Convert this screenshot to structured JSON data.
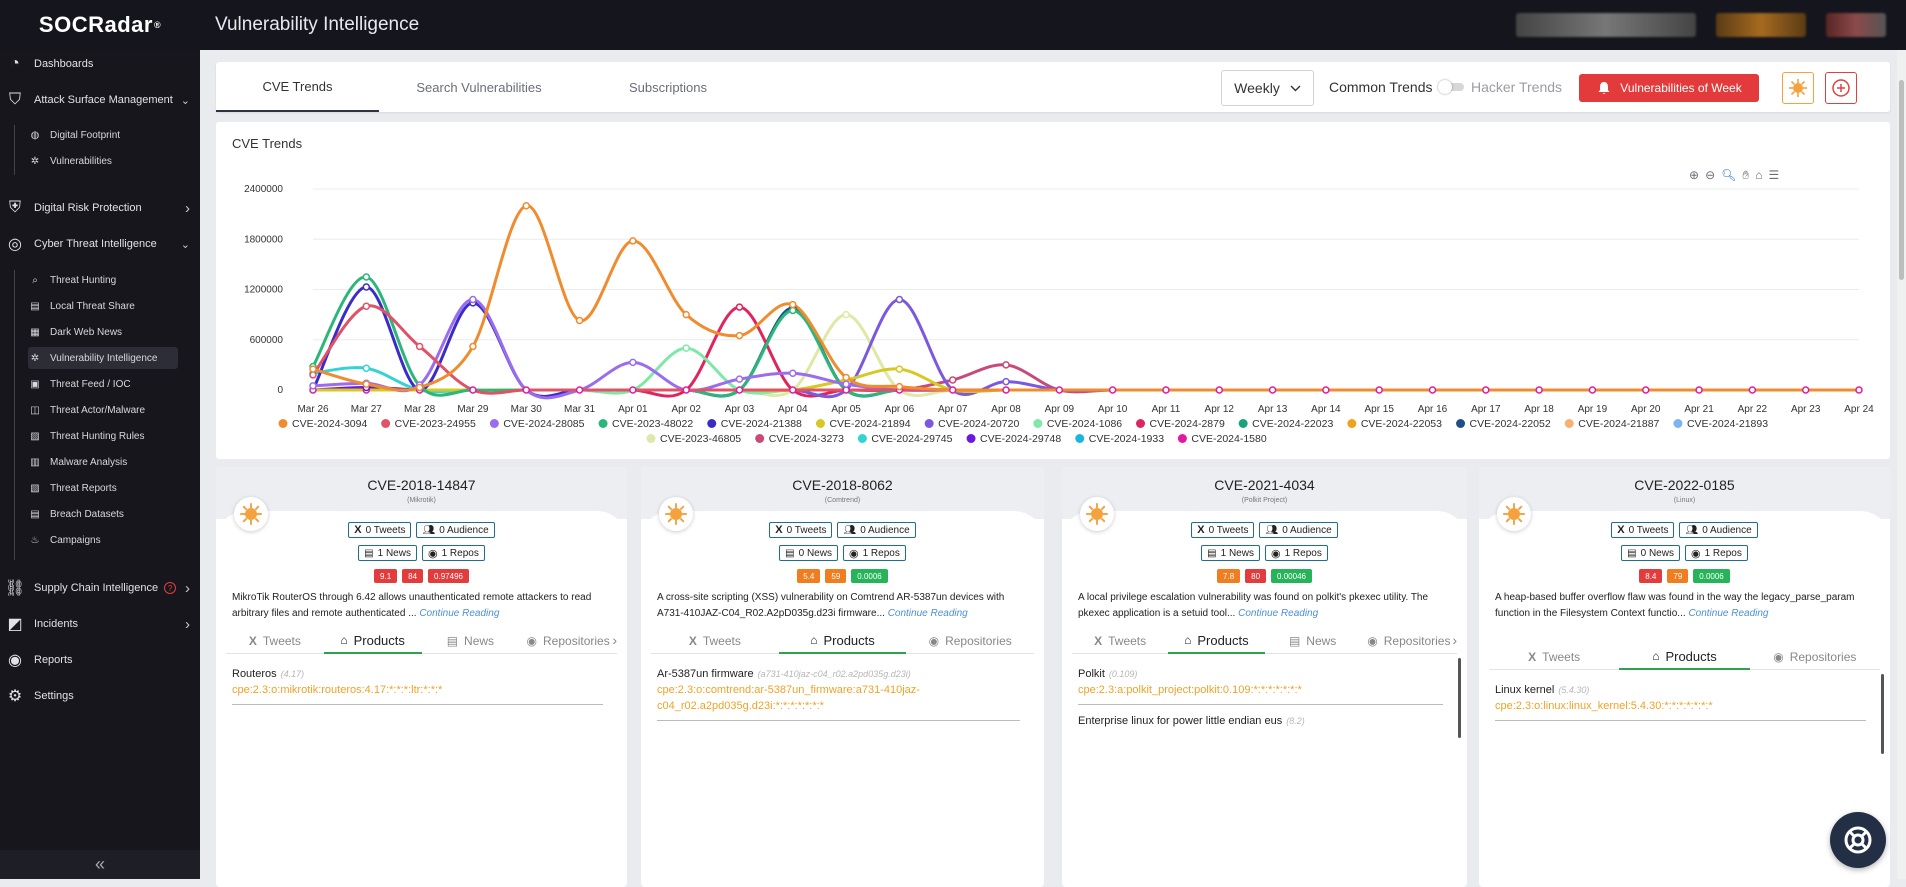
{
  "topbar": {
    "logo": "SOCRadar",
    "logo_mark": "®",
    "title": "Vulnerability Intelligence"
  },
  "sidebar": {
    "items": [
      {
        "label": "Dashboards",
        "icon": "dashboard-icon"
      },
      {
        "label": "Attack Surface Management",
        "icon": "asm-icon",
        "expanded": true
      },
      {
        "label": "Digital Footprint",
        "icon": "globe-icon",
        "sub": true
      },
      {
        "label": "Vulnerabilities",
        "icon": "bug-icon",
        "sub": true
      },
      {
        "label": "Digital Risk Protection",
        "icon": "shield-icon"
      },
      {
        "label": "Cyber Threat Intelligence",
        "icon": "target-icon",
        "expanded": true
      },
      {
        "label": "Threat Hunting",
        "icon": "search-icon",
        "sub": true
      },
      {
        "label": "Local Threat Share",
        "icon": "share-icon",
        "sub": true
      },
      {
        "label": "Dark Web News",
        "icon": "news-icon",
        "sub": true
      },
      {
        "label": "Vulnerability Intelligence",
        "icon": "bug-icon",
        "sub": true,
        "active": true
      },
      {
        "label": "Threat Feed / IOC",
        "icon": "feed-icon",
        "sub": true
      },
      {
        "label": "Threat Actor/Malware",
        "icon": "actor-icon",
        "sub": true
      },
      {
        "label": "Threat Hunting Rules",
        "icon": "rules-icon",
        "sub": true
      },
      {
        "label": "Malware Analysis",
        "icon": "malware-icon",
        "sub": true
      },
      {
        "label": "Threat Reports",
        "icon": "report-icon",
        "sub": true
      },
      {
        "label": "Breach Datasets",
        "icon": "database-icon",
        "sub": true
      },
      {
        "label": "Campaigns",
        "icon": "flame-icon",
        "sub": true
      },
      {
        "label": "Supply Chain Intelligence",
        "icon": "chain-icon",
        "badge": "?"
      },
      {
        "label": "Incidents",
        "icon": "incident-icon"
      },
      {
        "label": "Reports",
        "icon": "reports-icon"
      },
      {
        "label": "Settings",
        "icon": "gear-icon"
      }
    ],
    "collapse": "«"
  },
  "tabs": [
    {
      "label": "CVE Trends",
      "active": true
    },
    {
      "label": "Search Vulnerabilities"
    },
    {
      "label": "Subscriptions"
    }
  ],
  "controls": {
    "period": "Weekly",
    "common_trends": "Common Trends",
    "hacker_trends": "Hacker Trends",
    "vow_button": "Vulnerabilities of Week",
    "accent": "#e33b3b"
  },
  "chart_data": {
    "type": "line",
    "title": "CVE Trends",
    "ylim": [
      0,
      2400000
    ],
    "yticks": [
      0,
      600000,
      1200000,
      1800000,
      2400000
    ],
    "grid": true,
    "legend_position": "bottom",
    "categories": [
      "Mar 26",
      "Mar 27",
      "Mar 28",
      "Mar 29",
      "Mar 30",
      "Mar 31",
      "Apr 01",
      "Apr 02",
      "Apr 03",
      "Apr 04",
      "Apr 05",
      "Apr 06",
      "Apr 07",
      "Apr 08",
      "Apr 09",
      "Apr 10",
      "Apr 11",
      "Apr 12",
      "Apr 13",
      "Apr 14",
      "Apr 15",
      "Apr 16",
      "Apr 17",
      "Apr 18",
      "Apr 19",
      "Apr 20",
      "Apr 21",
      "Apr 22",
      "Apr 23",
      "Apr 24"
    ],
    "series": [
      {
        "name": "CVE-2024-3094",
        "color": "#f08c2e",
        "values": [
          250000,
          70000,
          30000,
          520000,
          2200000,
          830000,
          1780000,
          900000,
          650000,
          1020000,
          150000,
          40000,
          0,
          0,
          0,
          0,
          0,
          0,
          0,
          0,
          0,
          0,
          0,
          0,
          0,
          0,
          0,
          0,
          0,
          0
        ]
      },
      {
        "name": "CVE-2023-24955",
        "color": "#e05267",
        "values": [
          180000,
          1000000,
          520000,
          0,
          0,
          0,
          0,
          0,
          0,
          0,
          0,
          0,
          0,
          0,
          0,
          0,
          0,
          0,
          0,
          0,
          0,
          0,
          0,
          0,
          0,
          0,
          0,
          0,
          0,
          0
        ]
      },
      {
        "name": "CVE-2024-28085",
        "color": "#9b6cf0",
        "values": [
          50000,
          80000,
          60000,
          1080000,
          0,
          0,
          330000,
          0,
          130000,
          200000,
          70000,
          0,
          0,
          0,
          0,
          0,
          0,
          0,
          0,
          0,
          0,
          0,
          0,
          0,
          0,
          0,
          0,
          0,
          0,
          0
        ]
      },
      {
        "name": "CVE-2023-48022",
        "color": "#2bb77a",
        "values": [
          280000,
          1350000,
          50000,
          0,
          0,
          0,
          0,
          0,
          0,
          950000,
          0,
          0,
          0,
          0,
          0,
          0,
          0,
          0,
          0,
          0,
          0,
          0,
          0,
          0,
          0,
          0,
          0,
          0,
          0,
          0
        ]
      },
      {
        "name": "CVE-2024-21388",
        "color": "#3a2dc7",
        "values": [
          0,
          1230000,
          0,
          1040000,
          0,
          0,
          0,
          0,
          0,
          0,
          0,
          0,
          0,
          0,
          0,
          0,
          0,
          0,
          0,
          0,
          0,
          0,
          0,
          0,
          0,
          0,
          0,
          0,
          0,
          0
        ]
      },
      {
        "name": "CVE-2024-21894",
        "color": "#d7c824",
        "values": [
          0,
          0,
          0,
          0,
          0,
          0,
          0,
          0,
          0,
          0,
          120000,
          250000,
          0,
          0,
          0,
          0,
          0,
          0,
          0,
          0,
          0,
          0,
          0,
          0,
          0,
          0,
          0,
          0,
          0,
          0
        ]
      },
      {
        "name": "CVE-2024-20720",
        "color": "#7a58e0",
        "values": [
          0,
          0,
          0,
          0,
          0,
          0,
          0,
          0,
          0,
          0,
          0,
          1080000,
          0,
          100000,
          0,
          0,
          0,
          0,
          0,
          0,
          0,
          0,
          0,
          0,
          0,
          0,
          0,
          0,
          0,
          0
        ]
      },
      {
        "name": "CVE-2024-1086",
        "color": "#7ee8a8",
        "values": [
          0,
          0,
          0,
          0,
          0,
          0,
          0,
          500000,
          0,
          0,
          0,
          0,
          0,
          0,
          0,
          0,
          0,
          0,
          0,
          0,
          0,
          0,
          0,
          0,
          0,
          0,
          0,
          0,
          0,
          0
        ]
      },
      {
        "name": "CVE-2024-2879",
        "color": "#e0245e",
        "values": [
          0,
          0,
          0,
          0,
          0,
          0,
          0,
          0,
          990000,
          0,
          0,
          0,
          0,
          0,
          0,
          0,
          0,
          0,
          0,
          0,
          0,
          0,
          0,
          0,
          0,
          0,
          0,
          0,
          0,
          0
        ]
      },
      {
        "name": "CVE-2024-22023",
        "color": "#1aa37a",
        "values": [
          0,
          0,
          0,
          0,
          0,
          0,
          0,
          0,
          0,
          0,
          0,
          0,
          0,
          0,
          0,
          0,
          0,
          0,
          0,
          0,
          0,
          0,
          0,
          0,
          0,
          0,
          0,
          0,
          0,
          0
        ]
      },
      {
        "name": "CVE-2024-22053",
        "color": "#f0a31a",
        "values": [
          0,
          0,
          0,
          0,
          0,
          0,
          0,
          0,
          0,
          0,
          0,
          0,
          0,
          0,
          0,
          0,
          0,
          0,
          0,
          0,
          0,
          0,
          0,
          0,
          0,
          0,
          0,
          0,
          0,
          0
        ]
      },
      {
        "name": "CVE-2024-22052",
        "color": "#1d4f8a",
        "values": [
          0,
          0,
          0,
          0,
          0,
          0,
          0,
          0,
          0,
          980000,
          0,
          0,
          0,
          0,
          0,
          0,
          0,
          0,
          0,
          0,
          0,
          0,
          0,
          0,
          0,
          0,
          0,
          0,
          0,
          0
        ]
      },
      {
        "name": "CVE-2024-21887",
        "color": "#f7b074",
        "values": [
          0,
          0,
          0,
          0,
          0,
          0,
          0,
          0,
          0,
          0,
          0,
          0,
          0,
          0,
          0,
          0,
          0,
          0,
          0,
          0,
          0,
          0,
          0,
          0,
          0,
          0,
          0,
          0,
          0,
          0
        ]
      },
      {
        "name": "CVE-2024-21893",
        "color": "#7cb4f0",
        "values": [
          0,
          0,
          0,
          0,
          0,
          0,
          0,
          0,
          0,
          0,
          0,
          0,
          0,
          0,
          0,
          0,
          0,
          0,
          0,
          0,
          0,
          0,
          0,
          0,
          0,
          0,
          0,
          0,
          0,
          0
        ]
      },
      {
        "name": "CVE-2023-46805",
        "color": "#dfe8a6",
        "values": [
          0,
          0,
          0,
          0,
          0,
          0,
          0,
          0,
          0,
          0,
          900000,
          0,
          0,
          0,
          0,
          0,
          0,
          0,
          0,
          0,
          0,
          0,
          0,
          0,
          0,
          0,
          0,
          0,
          0,
          0
        ]
      },
      {
        "name": "CVE-2024-3273",
        "color": "#c84a78",
        "values": [
          0,
          0,
          0,
          0,
          0,
          0,
          0,
          0,
          0,
          0,
          0,
          0,
          120000,
          300000,
          0,
          0,
          0,
          0,
          0,
          0,
          0,
          0,
          0,
          0,
          0,
          0,
          0,
          0,
          0,
          0
        ]
      },
      {
        "name": "CVE-2024-29745",
        "color": "#34d3d3",
        "values": [
          200000,
          260000,
          0,
          0,
          0,
          0,
          0,
          0,
          0,
          0,
          0,
          0,
          0,
          0,
          0,
          0,
          0,
          0,
          0,
          0,
          0,
          0,
          0,
          0,
          0,
          0,
          0,
          0,
          0,
          0
        ]
      },
      {
        "name": "CVE-2024-29748",
        "color": "#6a17e0",
        "values": [
          0,
          30000,
          0,
          0,
          0,
          0,
          0,
          0,
          0,
          0,
          0,
          0,
          0,
          0,
          0,
          0,
          0,
          0,
          0,
          0,
          0,
          0,
          0,
          0,
          0,
          0,
          0,
          0,
          0,
          0
        ]
      },
      {
        "name": "CVE-2024-1933",
        "color": "#1ab6e0",
        "values": [
          0,
          0,
          0,
          0,
          0,
          0,
          0,
          0,
          0,
          0,
          0,
          0,
          0,
          0,
          0,
          0,
          0,
          0,
          0,
          0,
          0,
          0,
          0,
          0,
          0,
          0,
          0,
          0,
          0,
          0
        ]
      },
      {
        "name": "CVE-2024-1580",
        "color": "#e01aa0",
        "values": [
          0,
          0,
          0,
          0,
          0,
          0,
          0,
          0,
          0,
          0,
          0,
          0,
          0,
          0,
          0,
          0,
          0,
          0,
          0,
          0,
          0,
          0,
          0,
          0,
          0,
          0,
          0,
          0,
          0,
          0
        ]
      }
    ]
  },
  "cards": [
    {
      "id": "CVE-2018-14847",
      "vendor": "(Mikrotik)",
      "tweets": "0 Tweets",
      "audience": "0 Audience",
      "news": "1 News",
      "repos": "1 Repos",
      "scores": [
        {
          "v": "9.1",
          "c": "#e23c3c"
        },
        {
          "v": "84",
          "c": "#e23c3c"
        },
        {
          "v": "0.97496",
          "c": "#e23c3c"
        }
      ],
      "desc": "MikroTik RouterOS through 6.42 allows unauthenticated remote attackers to read arbitrary files and remote authenticated ...",
      "desc_line2": "",
      "continue": "Continue Reading",
      "tabs": [
        "Tweets",
        "Products",
        "News",
        "Repositories"
      ],
      "active_tab": 1,
      "products": [
        {
          "name": "Routeros",
          "ver": "(4.17)",
          "cpe": "cpe:2.3:o:mikrotik:routeros:4.17:*:*:*:ltr:*:*:*"
        }
      ]
    },
    {
      "id": "CVE-2018-8062",
      "vendor": "(Comtrend)",
      "tweets": "0 Tweets",
      "audience": "0 Audience",
      "news": "0 News",
      "repos": "1 Repos",
      "scores": [
        {
          "v": "5.4",
          "c": "#f07d1f"
        },
        {
          "v": "59",
          "c": "#f07d1f"
        },
        {
          "v": "0.0006",
          "c": "#27b35a"
        }
      ],
      "desc": "A cross-site scripting (XSS) vulnerability on Comtrend AR-5387un devices with A731-410JAZ-C04_R02.A2pD035g.d23i firmware...",
      "continue": "Continue Reading",
      "tabs": [
        "Tweets",
        "Products",
        "Repositories"
      ],
      "active_tab": 1,
      "products": [
        {
          "name": "Ar-5387un firmware",
          "ver": "(a731-410jaz-c04_r02.a2pd035g.d23i)",
          "cpe": "cpe:2.3:o:comtrend:ar-5387un_firmware:a731-410jaz-c04_r02.a2pd035g.d23i:*:*:*:*:*:*:*"
        }
      ]
    },
    {
      "id": "CVE-2021-4034",
      "vendor": "(Polkit Project)",
      "tweets": "0 Tweets",
      "audience": "0 Audience",
      "news": "1 News",
      "repos": "1 Repos",
      "scores": [
        {
          "v": "7.8",
          "c": "#f07d1f"
        },
        {
          "v": "80",
          "c": "#e23c3c"
        },
        {
          "v": "0.00046",
          "c": "#27b35a"
        }
      ],
      "desc": "A local privilege escalation vulnerability was found on polkit's pkexec utility. The pkexec application is a setuid tool...",
      "continue": "Continue Reading",
      "tabs": [
        "Tweets",
        "Products",
        "News",
        "Repositories"
      ],
      "active_tab": 1,
      "products": [
        {
          "name": "Polkit",
          "ver": "(0.109)",
          "cpe": "cpe:2.3:a:polkit_project:polkit:0.109:*:*:*:*:*:*:*"
        },
        {
          "name": "Enterprise linux for power little endian eus",
          "ver": "(8.2)",
          "cpe": ""
        }
      ]
    },
    {
      "id": "CVE-2022-0185",
      "vendor": "(Linux)",
      "tweets": "0 Tweets",
      "audience": "0 Audience",
      "news": "0 News",
      "repos": "1 Repos",
      "scores": [
        {
          "v": "8.4",
          "c": "#e23c3c"
        },
        {
          "v": "79",
          "c": "#f07d1f"
        },
        {
          "v": "0.0006",
          "c": "#27b35a"
        }
      ],
      "desc": "A heap-based buffer overflow flaw was found in the way the legacy_parse_param function in the Filesystem Context functio...",
      "continue": "Continue Reading",
      "tabs": [
        "Tweets",
        "Products",
        "Repositories"
      ],
      "active_tab": 1,
      "products": [
        {
          "name": "Linux kernel",
          "ver": "(5.4.30)",
          "cpe": "cpe:2.3:o:linux:linux_kernel:5.4.30:*:*:*:*:*:*:*"
        }
      ]
    }
  ]
}
